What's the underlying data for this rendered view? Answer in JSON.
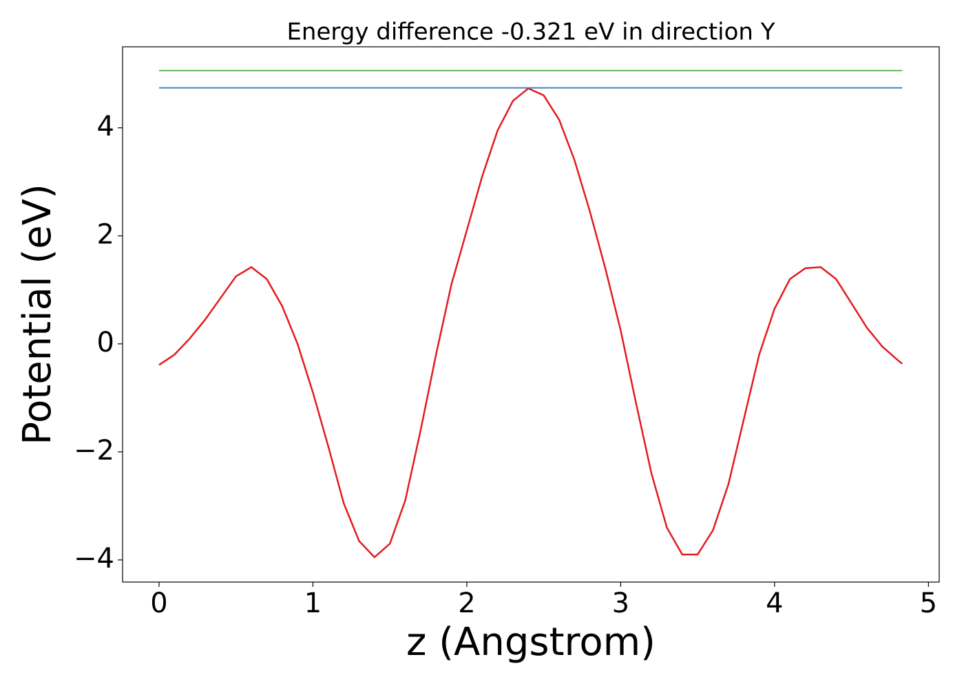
{
  "chart_data": {
    "type": "line",
    "title": "Energy difference -0.321 eV in direction Y",
    "xlabel": "z (Angstrom)",
    "ylabel": "Potential (eV)",
    "xlim": [
      -0.237,
      5.07
    ],
    "ylim": [
      -4.41,
      5.5
    ],
    "xticks": [
      0,
      1,
      2,
      3,
      4,
      5
    ],
    "yticks": [
      {
        "value": -4,
        "label": "−4"
      },
      {
        "value": -2,
        "label": "−2"
      },
      0,
      2,
      4
    ],
    "grid": false,
    "series": [
      {
        "color": "#e41a1c",
        "x": [
          0,
          0.1,
          0.2,
          0.3,
          0.4,
          0.5,
          0.6,
          0.7,
          0.8,
          0.9,
          1.0,
          1.1,
          1.2,
          1.3,
          1.4,
          1.5,
          1.6,
          1.7,
          1.8,
          1.9,
          2.0,
          2.1,
          2.2,
          2.3,
          2.4,
          2.5,
          2.6,
          2.7,
          2.8,
          2.9,
          3.0,
          3.1,
          3.2,
          3.3,
          3.4,
          3.5,
          3.6,
          3.7,
          3.8,
          3.9,
          4.0,
          4.1,
          4.2,
          4.3,
          4.4,
          4.5,
          4.6,
          4.7,
          4.8,
          4.83
        ],
        "values": [
          -0.39,
          -0.2,
          0.1,
          0.45,
          0.85,
          1.25,
          1.42,
          1.2,
          0.7,
          0.0,
          -0.9,
          -1.9,
          -2.95,
          -3.65,
          -3.95,
          -3.7,
          -2.9,
          -1.6,
          -0.2,
          1.1,
          2.1,
          3.1,
          3.95,
          4.5,
          4.73,
          4.6,
          4.15,
          3.4,
          2.45,
          1.4,
          0.25,
          -1.1,
          -2.4,
          -3.4,
          -3.9,
          -3.9,
          -3.45,
          -2.6,
          -1.4,
          -0.2,
          0.65,
          1.2,
          1.4,
          1.42,
          1.2,
          0.75,
          0.3,
          -0.05,
          -0.3,
          -0.37
        ]
      },
      {
        "color": "#4daf4a",
        "x": [
          0,
          4.83
        ],
        "values": [
          5.06,
          5.06
        ]
      },
      {
        "color": "#377eb8",
        "x": [
          0,
          4.83
        ],
        "values": [
          4.74,
          4.74
        ]
      }
    ]
  }
}
